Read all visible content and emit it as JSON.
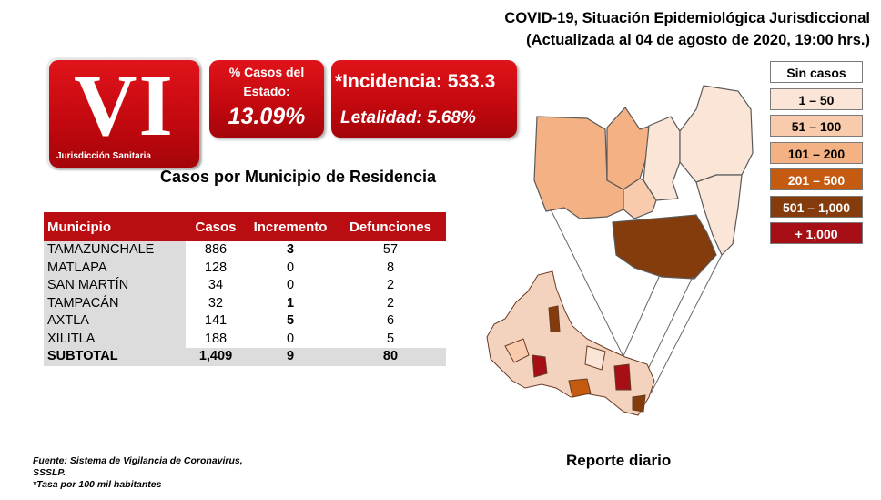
{
  "header": {
    "line1": "COVID-19, Situación Epidemiológica Jurisdiccional",
    "line2": "(Actualizada al 04 de agosto de 2020, 19:00 hrs.)"
  },
  "jurisdiction": {
    "numeral": "VI",
    "label": "Jurisdicción Sanitaria"
  },
  "state_pct": {
    "label_line1": "% Casos del",
    "label_line2": "Estado:",
    "value": "13.09%"
  },
  "incidence": {
    "incidence_text": "*Incidencia: 533.3",
    "lethality_text": "Letalidad: 5.68%"
  },
  "section_title": "Casos por Municipio  de Residencia",
  "table": {
    "headers": [
      "Municipio",
      "Casos",
      "Incremento",
      "Defunciones"
    ],
    "rows": [
      {
        "municipio": "TAMAZUNCHALE",
        "casos": "886",
        "incremento": "3",
        "defunciones": "57"
      },
      {
        "municipio": "MATLAPA",
        "casos": "128",
        "incremento": "0",
        "defunciones": "8"
      },
      {
        "municipio": "SAN MARTÍN",
        "casos": "34",
        "incremento": "0",
        "defunciones": "2"
      },
      {
        "municipio": "TAMPACÁN",
        "casos": "32",
        "incremento": "1",
        "defunciones": "2"
      },
      {
        "municipio": "AXTLA",
        "casos": "141",
        "incremento": "5",
        "defunciones": "6"
      },
      {
        "municipio": "XILITLA",
        "casos": "188",
        "incremento": "0",
        "defunciones": "5"
      }
    ],
    "total": {
      "municipio": "SUBTOTAL",
      "casos": "1,409",
      "incremento": "9",
      "defunciones": "80"
    }
  },
  "legend": [
    {
      "label": "Sin casos",
      "color": "#ffffff",
      "text_color": "#000000"
    },
    {
      "label": "1 – 50",
      "color": "#fbe5d6",
      "text_color": "#000000"
    },
    {
      "label": "51 – 100",
      "color": "#f8cbad",
      "text_color": "#000000"
    },
    {
      "label": "101 – 200",
      "color": "#f4b183",
      "text_color": "#000000"
    },
    {
      "label": "201 – 500",
      "color": "#c55a11",
      "text_color": "#ffffff"
    },
    {
      "label": "501 – 1,000",
      "color": "#843c0c",
      "text_color": "#ffffff"
    },
    {
      "label": "+ 1,000",
      "color": "#a50f15",
      "text_color": "#ffffff"
    }
  ],
  "footer": {
    "line1": "Fuente: Sistema de Vigilancia  de Coronavirus,",
    "line2": "SSSLP.",
    "line3": "*Tasa por 100 mil habitantes"
  },
  "report_label": "Reporte diario",
  "colors": {
    "accent_red": "#c1080e"
  }
}
